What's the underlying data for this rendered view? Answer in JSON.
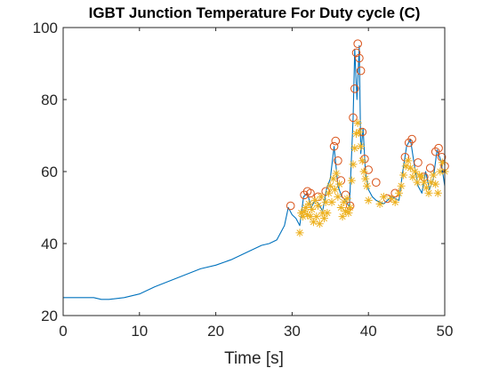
{
  "chart_data": {
    "type": "line",
    "title": "IGBT Junction Temperature For Duty cycle (C)",
    "xlabel": "Time [s]",
    "ylabel": "",
    "xlim": [
      0,
      50
    ],
    "ylim": [
      20,
      100
    ],
    "xticks": [
      0,
      10,
      20,
      30,
      40,
      50
    ],
    "yticks": [
      20,
      40,
      60,
      80,
      100
    ],
    "grid": false,
    "colors": {
      "line": "#0072bd",
      "peaks": "#d95319",
      "valleys": "#edb120",
      "axis": "#262626"
    },
    "series": [
      {
        "marker": "line",
        "x": [
          0,
          4,
          5,
          6,
          8,
          10,
          12,
          15,
          18,
          20,
          22,
          24,
          26,
          27,
          28,
          29,
          29.5,
          30,
          30.5,
          31,
          31.5,
          32,
          32.5,
          33,
          33.5,
          34,
          34.5,
          35,
          35.5,
          36,
          36.5,
          37,
          37.5,
          38,
          38.2,
          38.5,
          38.8,
          39,
          39.3,
          39.6,
          40,
          40.5,
          41,
          42,
          43,
          44,
          44.5,
          45,
          45.5,
          46,
          46.5,
          47,
          47.5,
          48,
          48.5,
          49,
          49.5,
          50
        ],
        "y": [
          25,
          25,
          24.5,
          24.5,
          25,
          26,
          28,
          30.5,
          33,
          34,
          35.5,
          37.5,
          39.5,
          40,
          41,
          45,
          50,
          48,
          47,
          45,
          53,
          54,
          50,
          52,
          51,
          49,
          55,
          58,
          67,
          56,
          53,
          52,
          50,
          75,
          94,
          80,
          95,
          65,
          72,
          60,
          55,
          53,
          52,
          51,
          53,
          52,
          60,
          67,
          69,
          62,
          56,
          54,
          60,
          55,
          58,
          66,
          63,
          56
        ]
      },
      {
        "marker": "o",
        "x": [
          29.8,
          31.6,
          32.0,
          32.4,
          33.4,
          34.4,
          35.5,
          35.7,
          36.0,
          36.4,
          37.0,
          37.6,
          38.0,
          38.2,
          38.4,
          38.6,
          38.8,
          39.0,
          39.2,
          39.5,
          40.0,
          41.0,
          42.5,
          43.5,
          44.8,
          45.3,
          45.7,
          46.5,
          47.3,
          48.1,
          48.8,
          49.2,
          49.6,
          50.0
        ],
        "y": [
          50.5,
          53.5,
          54.5,
          54,
          53,
          54.5,
          67,
          68.5,
          63,
          57.5,
          53.5,
          50.5,
          75,
          83,
          93,
          95.5,
          91.5,
          88,
          71,
          63.5,
          60.5,
          57,
          52.5,
          54,
          64,
          68,
          69,
          62.5,
          58.5,
          61,
          65.5,
          66.5,
          64,
          61.5
        ]
      },
      {
        "marker": "*",
        "x": [
          31.0,
          31.2,
          31.4,
          31.6,
          31.8,
          32.0,
          32.2,
          32.4,
          32.6,
          32.8,
          33.0,
          33.2,
          33.4,
          33.6,
          33.8,
          34.0,
          34.2,
          34.4,
          34.6,
          34.8,
          35.0,
          35.2,
          35.4,
          35.6,
          35.8,
          36.0,
          36.2,
          36.4,
          36.6,
          36.8,
          37.0,
          37.2,
          37.4,
          37.6,
          37.8,
          38.0,
          38.2,
          38.4,
          38.6,
          38.8,
          39.0,
          39.2,
          39.4,
          39.6,
          39.8,
          40.0,
          41.5,
          42.0,
          43.0,
          43.5,
          44.0,
          44.3,
          44.6,
          44.9,
          45.2,
          45.5,
          45.8,
          46.1,
          46.4,
          46.7,
          47.0,
          47.3,
          47.6,
          47.9,
          48.2,
          48.5,
          48.8,
          49.1,
          49.4,
          49.7,
          50.0
        ],
        "y": [
          43,
          48.5,
          47.5,
          49,
          50,
          48,
          51,
          47.5,
          49.5,
          46,
          52,
          47.5,
          50.5,
          45.5,
          53,
          48.5,
          47,
          51.5,
          48.5,
          54,
          56,
          51.5,
          58,
          55,
          59.5,
          53,
          56.5,
          50,
          47.5,
          51.5,
          49,
          52.5,
          48.5,
          50,
          57.5,
          62,
          66.5,
          70.5,
          73.5,
          71,
          67,
          63,
          60,
          58,
          56,
          52,
          51,
          53,
          52.5,
          51.5,
          54,
          56,
          59,
          61.5,
          63,
          61,
          58.5,
          60,
          57,
          59,
          58.5,
          57,
          55.5,
          54,
          57,
          59,
          56.5,
          54,
          60,
          62.5,
          60
        ]
      }
    ]
  }
}
